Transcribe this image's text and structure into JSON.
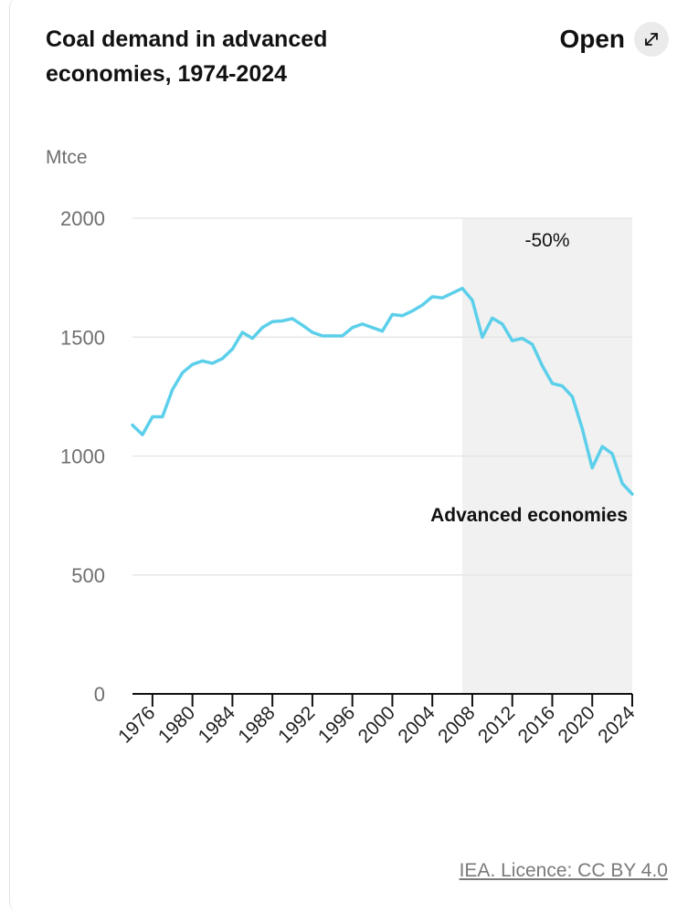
{
  "header": {
    "title": "Coal demand in advanced economies, 1974-2024",
    "open_label": "Open"
  },
  "footer": {
    "source": "IEA. Licence: CC BY 4.0"
  },
  "chart_data": {
    "type": "line",
    "title": "Coal demand in advanced economies, 1974-2024",
    "ylabel": "Mtce",
    "xlabel": "",
    "ylim": [
      0,
      2000
    ],
    "yticks": [
      0,
      500,
      1000,
      1500,
      2000
    ],
    "xlim": [
      1974,
      2024
    ],
    "xticks": [
      1976,
      1980,
      1984,
      1988,
      1992,
      1996,
      2000,
      2004,
      2008,
      2012,
      2016,
      2020,
      2024
    ],
    "grid": "horizontal",
    "shaded_region": {
      "x_start": 2007,
      "x_end": 2024,
      "label": "-50%",
      "color": "#f1f1f1"
    },
    "series": [
      {
        "name": "Advanced economies",
        "color": "#5ccfea",
        "x": [
          1974,
          1975,
          1976,
          1977,
          1978,
          1979,
          1980,
          1981,
          1982,
          1983,
          1984,
          1985,
          1986,
          1987,
          1988,
          1989,
          1990,
          1991,
          1992,
          1993,
          1994,
          1995,
          1996,
          1997,
          1998,
          1999,
          2000,
          2001,
          2002,
          2003,
          2004,
          2005,
          2006,
          2007,
          2008,
          2009,
          2010,
          2011,
          2012,
          2013,
          2014,
          2015,
          2016,
          2017,
          2018,
          2019,
          2020,
          2021,
          2022,
          2023,
          2024
        ],
        "values": [
          1130,
          1090,
          1165,
          1165,
          1280,
          1350,
          1385,
          1400,
          1390,
          1410,
          1450,
          1520,
          1495,
          1540,
          1565,
          1568,
          1578,
          1550,
          1520,
          1505,
          1505,
          1505,
          1540,
          1555,
          1540,
          1525,
          1595,
          1590,
          1610,
          1635,
          1670,
          1665,
          1685,
          1705,
          1655,
          1500,
          1580,
          1555,
          1485,
          1495,
          1470,
          1380,
          1305,
          1295,
          1250,
          1115,
          950,
          1040,
          1010,
          885,
          840
        ]
      }
    ]
  }
}
